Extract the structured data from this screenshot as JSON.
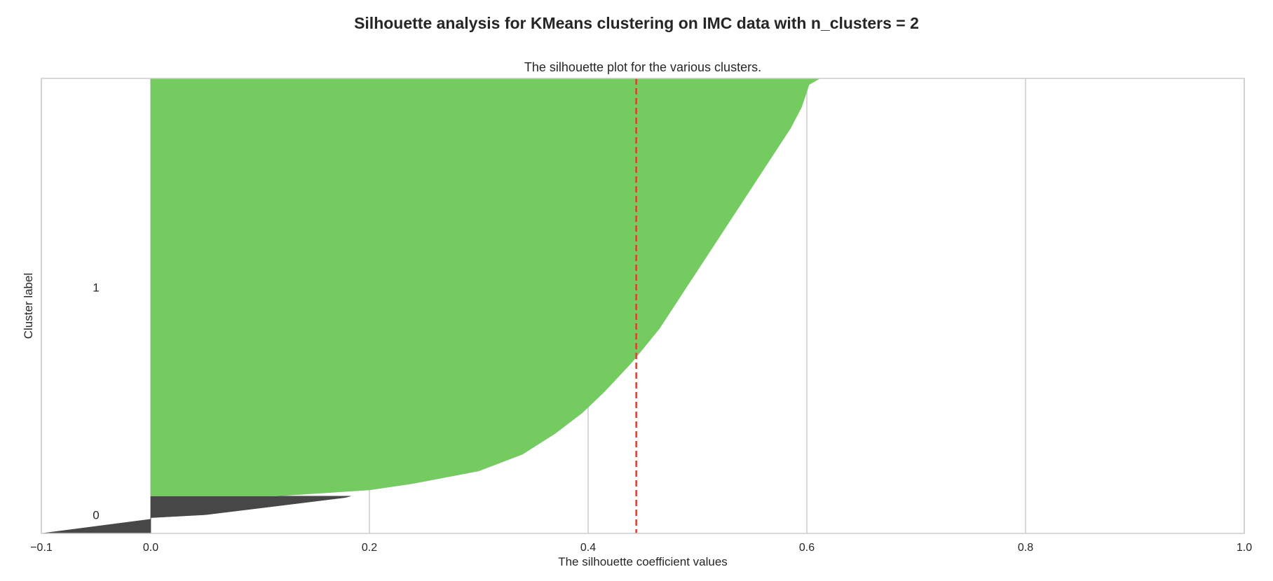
{
  "chart_data": {
    "type": "area",
    "title": "Silhouette analysis for KMeans clustering on IMC data with n_clusters = 2",
    "subtitle": "The silhouette plot for the various clusters.",
    "xlabel": "The silhouette coefficient values",
    "ylabel": "Cluster label",
    "xlim": [
      -0.1,
      1.0
    ],
    "x_ticks": [
      -0.1,
      0.0,
      0.2,
      0.4,
      0.6,
      0.8,
      1.0
    ],
    "x_tick_labels": [
      "−0.1",
      "0.0",
      "0.2",
      "0.4",
      "0.6",
      "0.8",
      "1.0"
    ],
    "grid": "vertical",
    "average_silhouette_score": 0.444,
    "average_line_color": "#e03c31",
    "clusters": [
      {
        "label": "0",
        "color": "#474747",
        "y_range": [
          0,
          0.082
        ],
        "profile": [
          [
            0.0,
            -0.1
          ],
          [
            0.38,
            0.0
          ],
          [
            0.42,
            0.0
          ],
          [
            0.5,
            0.05
          ],
          [
            0.75,
            0.12
          ],
          [
            0.96,
            0.178
          ],
          [
            1.0,
            0.183
          ]
        ]
      },
      {
        "label": "1",
        "color": "#74cc61",
        "y_range": [
          0.082,
          1.0
        ],
        "profile": [
          [
            0.0,
            0.115
          ],
          [
            0.0145,
            0.2
          ],
          [
            0.03,
            0.24
          ],
          [
            0.06,
            0.3
          ],
          [
            0.1,
            0.34
          ],
          [
            0.15,
            0.37
          ],
          [
            0.2,
            0.395
          ],
          [
            0.25,
            0.415
          ],
          [
            0.32,
            0.44
          ],
          [
            0.4,
            0.465
          ],
          [
            0.5,
            0.49
          ],
          [
            0.6,
            0.515
          ],
          [
            0.7,
            0.54
          ],
          [
            0.8,
            0.565
          ],
          [
            0.88,
            0.585
          ],
          [
            0.93,
            0.595
          ],
          [
            0.96,
            0.599
          ],
          [
            0.985,
            0.602
          ],
          [
            1.0,
            0.612
          ]
        ]
      }
    ]
  }
}
